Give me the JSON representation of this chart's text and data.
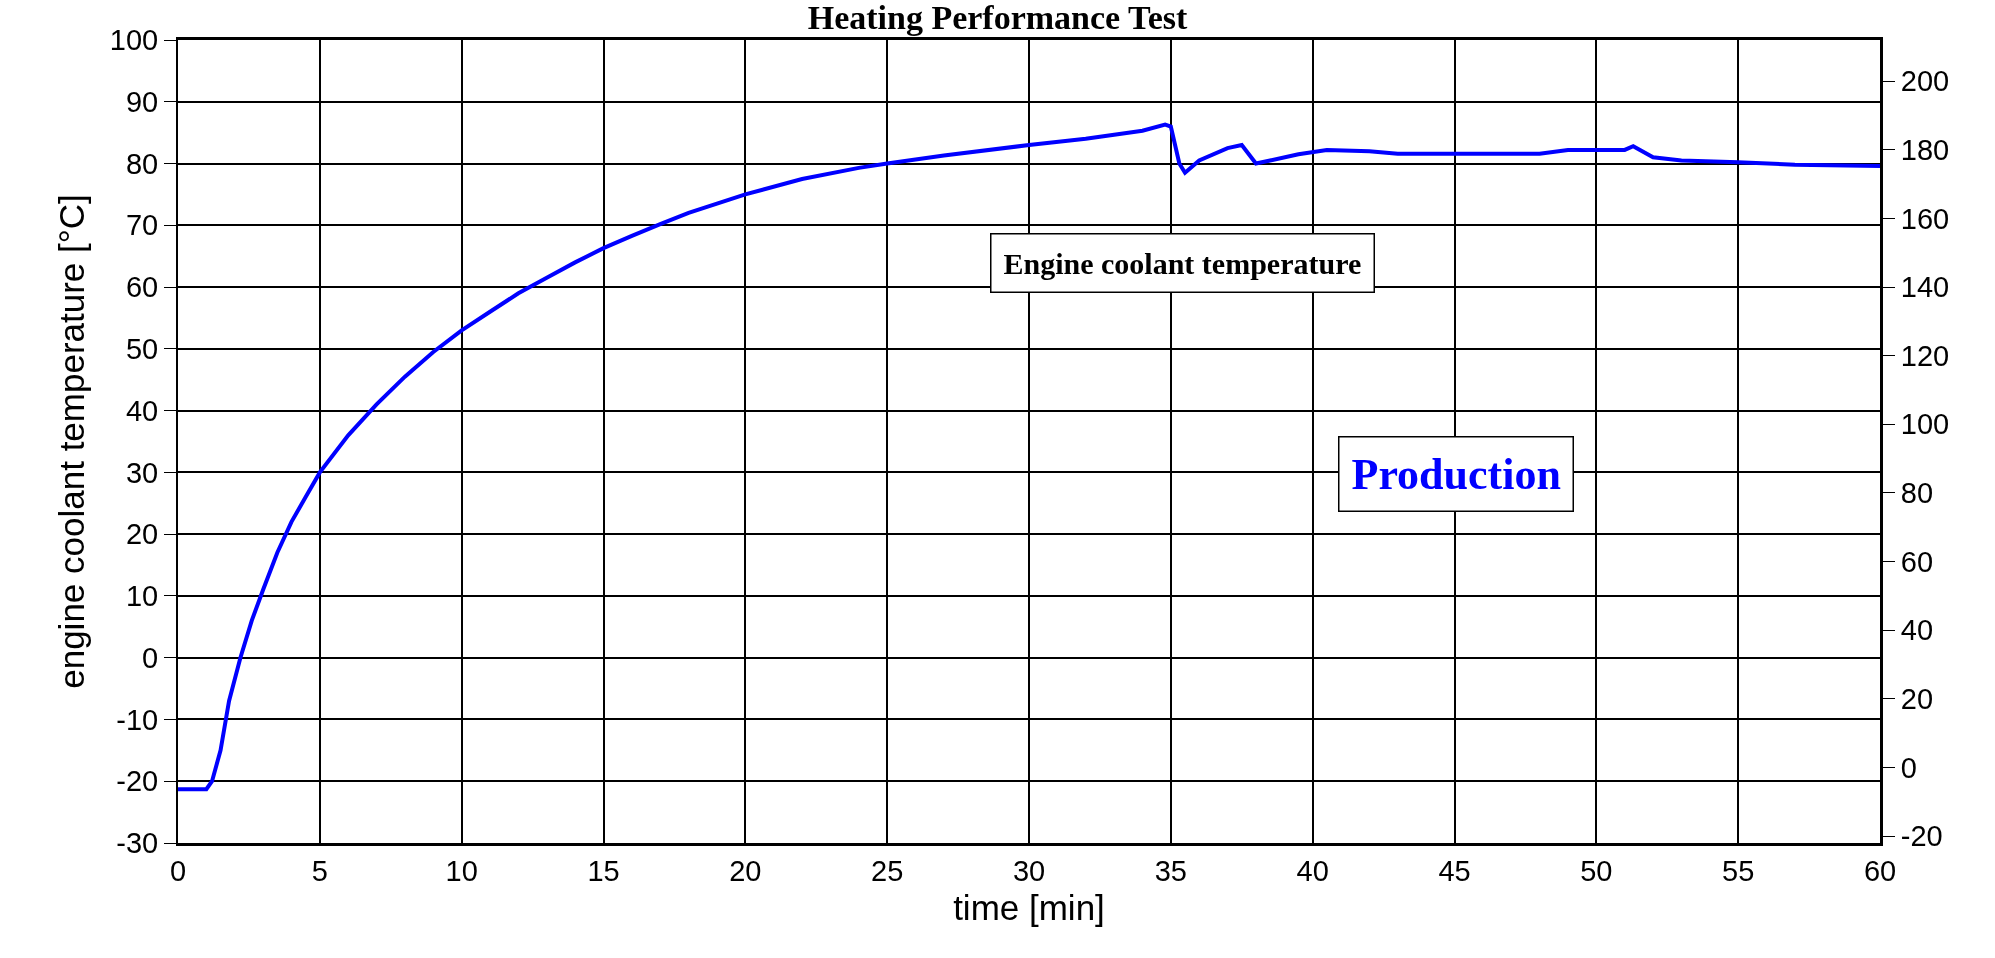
{
  "chart_data": {
    "type": "line",
    "title": "Heating Performance Test",
    "xlabel": "time [min]",
    "ylabel": "engine coolant temperature [°C]",
    "xlim": [
      0,
      60
    ],
    "xticks": [
      0,
      5,
      10,
      15,
      20,
      25,
      30,
      35,
      40,
      45,
      50,
      55,
      60
    ],
    "ylim": [
      -30,
      100
    ],
    "yticks": [
      -30,
      -20,
      -10,
      0,
      10,
      20,
      30,
      40,
      50,
      60,
      70,
      80,
      90,
      100
    ],
    "y2lim": [
      -22,
      212
    ],
    "y2ticks": [
      -20,
      0,
      20,
      40,
      60,
      80,
      100,
      120,
      140,
      160,
      180,
      200
    ],
    "grid": true,
    "legend": false,
    "marker": "none",
    "line_style": "solid",
    "annotations": [
      "Production"
    ],
    "series": [
      {
        "name": "Engine coolant temperature",
        "color": "#0000ff",
        "x": [
          0,
          1.0,
          1.2,
          1.5,
          1.8,
          2.2,
          2.6,
          3,
          3.5,
          4,
          4.5,
          5,
          6,
          7,
          8,
          9,
          10,
          11,
          12,
          13,
          14,
          15,
          16,
          17,
          18,
          19,
          20,
          22,
          24,
          25,
          27,
          30,
          32,
          34,
          34.8,
          35,
          35.3,
          35.5,
          36,
          37,
          37.5,
          38,
          38.5,
          39.5,
          40.5,
          42,
          43,
          48,
          49,
          51,
          51.3,
          52,
          53,
          55,
          57,
          60
        ],
        "values": [
          -21.3,
          -21.3,
          -20,
          -15,
          -7,
          0,
          6,
          11,
          17,
          22,
          26,
          30,
          36,
          41,
          45.5,
          49.5,
          53,
          56,
          59,
          61.5,
          64,
          66.3,
          68.3,
          70.2,
          72,
          73.5,
          75,
          77.5,
          79.3,
          80,
          81.3,
          83,
          84,
          85.3,
          86.3,
          86,
          80,
          78.5,
          80.5,
          82.5,
          83,
          80,
          80.5,
          81.5,
          82.2,
          82,
          81.6,
          81.6,
          82.2,
          82.2,
          82.8,
          81,
          80.5,
          80.2,
          79.8,
          79.6
        ]
      }
    ]
  }
}
